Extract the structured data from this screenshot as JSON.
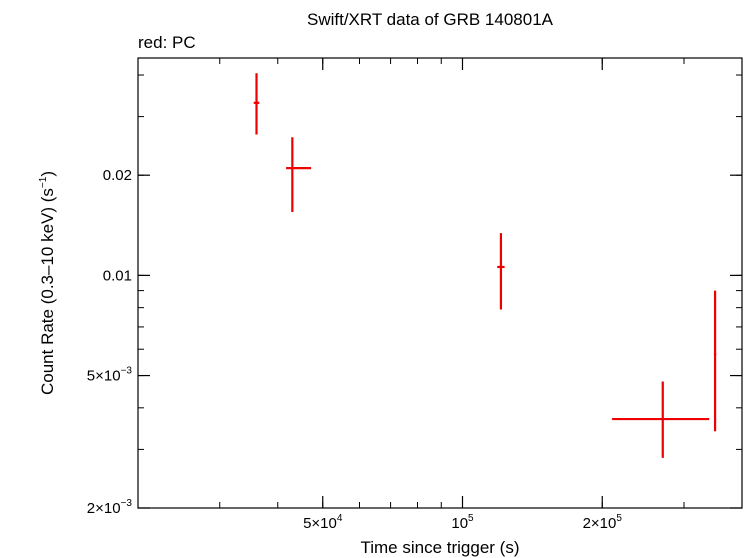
{
  "chart_data": {
    "type": "scatter",
    "title": "Swift/XRT data of GRB 140801A",
    "subtitle": "red: PC",
    "xlabel": "Time since trigger (s)",
    "ylabel_main": "Count Rate (0.3–10 keV) (s",
    "ylabel_sup": "−1",
    "ylabel_end": ")",
    "x_scale": "log",
    "y_scale": "log",
    "xlim": [
      20000,
      400000
    ],
    "ylim": [
      0.002,
      0.045
    ],
    "grid": false,
    "x_ticks": [
      {
        "value": 50000,
        "mant": "5×10",
        "exp": "4"
      },
      {
        "value": 100000,
        "mant": "10",
        "exp": "5"
      },
      {
        "value": 200000,
        "mant": "2×10",
        "exp": "5"
      }
    ],
    "y_ticks": [
      {
        "value": 0.002,
        "mant": "2×10",
        "exp": "−3"
      },
      {
        "value": 0.005,
        "mant": "5×10",
        "exp": "−3"
      },
      {
        "value": 0.01,
        "mant": "0.01",
        "exp": ""
      },
      {
        "value": 0.02,
        "mant": "0.02",
        "exp": ""
      }
    ],
    "series": [
      {
        "color": "#ee0000",
        "points": [
          {
            "x": 36000,
            "xerr_lo": 500,
            "xerr_hi": 500,
            "y": 0.033,
            "yerr_lo": 0.0065,
            "yerr_hi": 0.0075
          },
          {
            "x": 43000,
            "xerr_lo": 1300,
            "xerr_hi": 4200,
            "y": 0.021,
            "yerr_lo": 0.0055,
            "yerr_hi": 0.005
          },
          {
            "x": 121000,
            "xerr_lo": 2200,
            "xerr_hi": 2200,
            "y": 0.0106,
            "yerr_lo": 0.0027,
            "yerr_hi": 0.0028
          },
          {
            "x": 270000,
            "xerr_lo": 60000,
            "xerr_hi": 70000,
            "y": 0.0037,
            "yerr_lo": 0.00087,
            "yerr_hi": 0.0011
          },
          {
            "x": 350000,
            "xerr_lo": 2000,
            "xerr_hi": 2000,
            "y": 0.0058,
            "yerr_lo": 0.0024,
            "yerr_hi": 0.0032
          }
        ]
      }
    ]
  }
}
